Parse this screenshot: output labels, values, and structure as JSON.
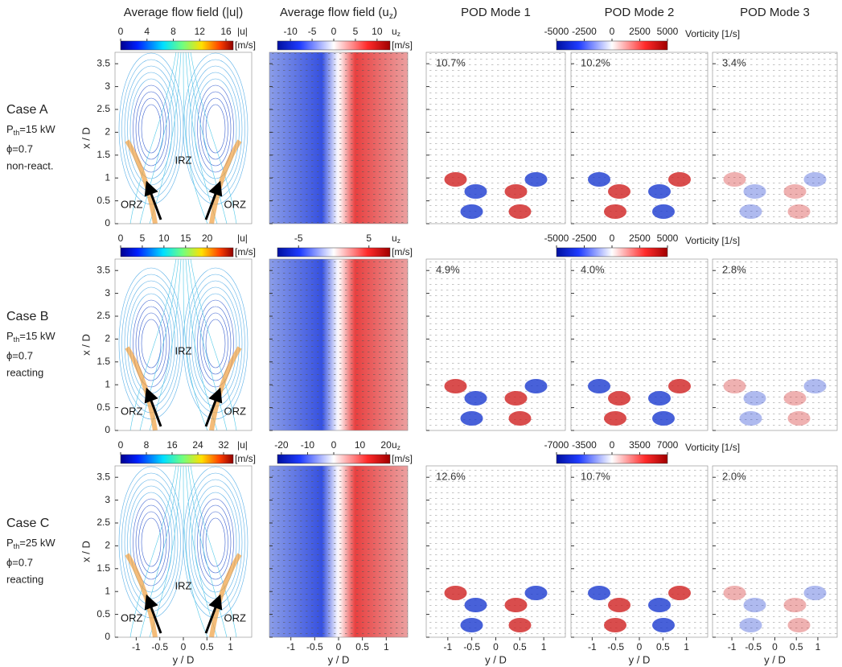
{
  "column_titles": [
    {
      "text": "Average flow field (|u|)"
    },
    {
      "text": "Average flow field (u",
      "sub": "z",
      "tail": ")"
    },
    {
      "text": "POD Mode 1"
    },
    {
      "text": "POD Mode 2"
    },
    {
      "text": "POD Mode 3"
    }
  ],
  "axes": {
    "y_label": "x / D",
    "x_label": "y / D",
    "ylim": [
      0,
      3.75
    ],
    "yticks": [
      0,
      0.5,
      1,
      1.5,
      2,
      2.5,
      3,
      3.5
    ],
    "xlim": [
      -1.45,
      1.45
    ],
    "xticks": [
      -1,
      -0.5,
      0,
      0.5,
      1
    ]
  },
  "rows": [
    {
      "case": "Case A",
      "power": {
        "text": "P",
        "sub": "th",
        "tail": "=15 kW"
      },
      "phi": "ϕ=0.7",
      "condition": "non-react.",
      "magnitude_bar": {
        "symbol": "|u|",
        "unit": "[m/s]",
        "lim": [
          0,
          17.1
        ],
        "ticks": [
          0,
          4,
          8,
          12,
          16
        ]
      },
      "uz_bar": {
        "symbol": "u",
        "sub": "z",
        "unit": "[m/s]",
        "lim": [
          -13,
          13
        ],
        "ticks": [
          -10,
          -5,
          0,
          5,
          10
        ]
      },
      "vorticity_bar": {
        "label": "Vorticity [1/s]",
        "lim": [
          -5000,
          5000
        ],
        "ticks": [
          -5000,
          -2500,
          0,
          2500,
          5000
        ]
      },
      "regions": [
        "IRZ",
        "ORZ",
        "ORZ"
      ],
      "mode_energy": [
        "10.7%",
        "10.2%",
        "3.4%"
      ]
    },
    {
      "case": "Case B",
      "power": {
        "text": "P",
        "sub": "th",
        "tail": "=15 kW"
      },
      "phi": "ϕ=0.7",
      "condition": "reacting",
      "magnitude_bar": {
        "symbol": "|u|",
        "unit": "[m/s]",
        "lim": [
          0,
          26
        ],
        "ticks": [
          0,
          5,
          10,
          15,
          20
        ]
      },
      "uz_bar": {
        "symbol": "u",
        "sub": "z",
        "unit": "[m/s]",
        "lim": [
          -8,
          8
        ],
        "ticks": [
          -5,
          5
        ]
      },
      "vorticity_bar": {
        "label": "Vorticity [1/s]",
        "lim": [
          -5000,
          5000
        ],
        "ticks": [
          -5000,
          -2500,
          0,
          2500,
          5000
        ]
      },
      "regions": [
        "IRZ",
        "ORZ",
        "ORZ"
      ],
      "mode_energy": [
        "4.9%",
        "4.0%",
        "2.8%"
      ]
    },
    {
      "case": "Case C",
      "power": {
        "text": "P",
        "sub": "th",
        "tail": "=25 kW"
      },
      "phi": "ϕ=0.7",
      "condition": "reacting",
      "magnitude_bar": {
        "symbol": "|u|",
        "unit": "[m/s]",
        "lim": [
          0,
          35
        ],
        "ticks": [
          0,
          8,
          16,
          24,
          32
        ]
      },
      "uz_bar": {
        "symbol": "u",
        "sub": "z",
        "unit": "[m/s]",
        "lim": [
          -21.5,
          21.5
        ],
        "ticks": [
          -20,
          -10,
          0,
          10,
          20
        ]
      },
      "vorticity_bar": {
        "label": "Vorticity [1/s]",
        "lim": [
          -7000,
          7000
        ],
        "ticks": [
          -7000,
          -3500,
          0,
          3500,
          7000
        ]
      },
      "regions": [
        "IRZ",
        "ORZ",
        "ORZ"
      ],
      "mode_energy": [
        "12.6%",
        "10.7%",
        "2.0%"
      ]
    }
  ]
}
